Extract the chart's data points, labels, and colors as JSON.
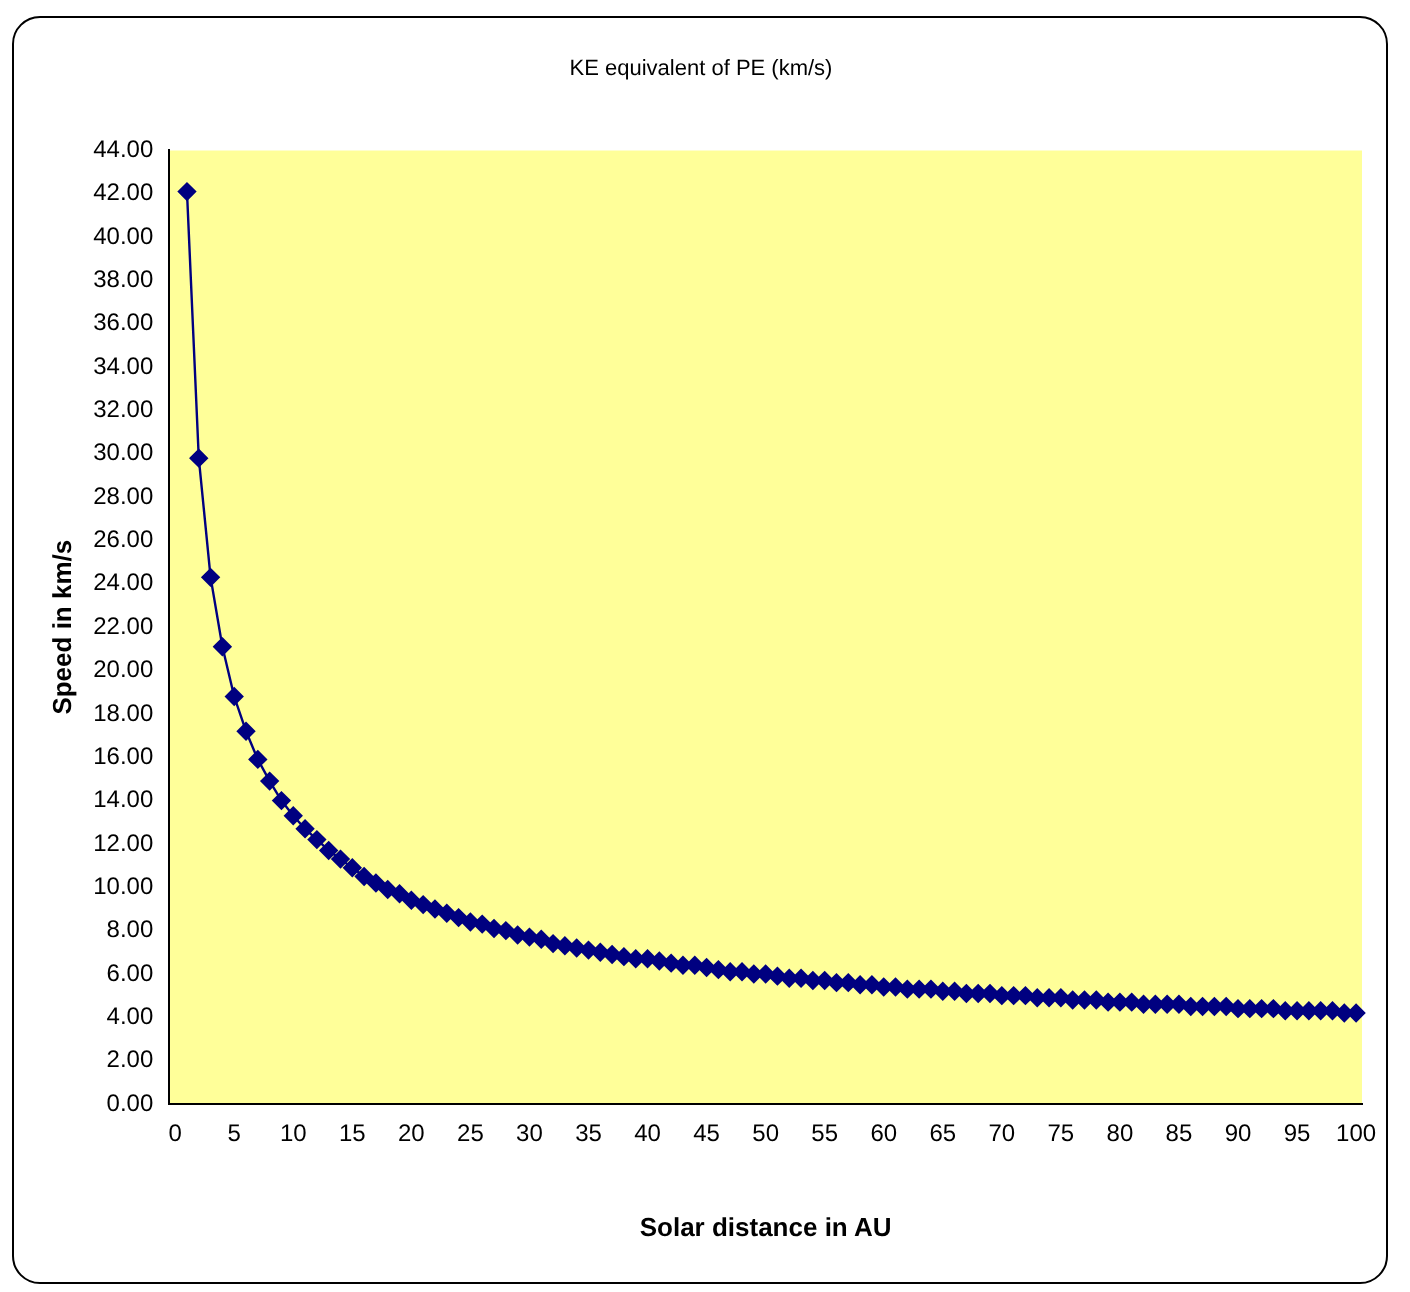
{
  "chart_data": {
    "type": "line",
    "title": "KE equivalent of PE (km/s)",
    "xlabel": "Solar distance in AU",
    "ylabel": "Speed in km/s",
    "categories": [
      "0",
      null,
      null,
      null,
      null,
      "5",
      null,
      null,
      null,
      null,
      "10",
      null,
      null,
      null,
      null,
      "15",
      null,
      null,
      null,
      null,
      "20",
      null,
      null,
      null,
      null,
      "25",
      null,
      null,
      null,
      null,
      "30",
      null,
      null,
      null,
      null,
      "35",
      null,
      null,
      null,
      null,
      "40",
      null,
      null,
      null,
      null,
      "45",
      null,
      null,
      null,
      null,
      "50",
      null,
      null,
      null,
      null,
      "55",
      null,
      null,
      null,
      null,
      "60",
      null,
      null,
      null,
      null,
      "65",
      null,
      null,
      null,
      null,
      "70",
      null,
      null,
      null,
      null,
      "75",
      null,
      null,
      null,
      null,
      "80",
      null,
      null,
      null,
      null,
      "85",
      null,
      null,
      null,
      null,
      "90",
      null,
      null,
      null,
      null,
      "95",
      null,
      null,
      null,
      null,
      "100"
    ],
    "series": [
      {
        "color": "#000080",
        "values": [
          null,
          42.1,
          29.8,
          24.3,
          21.1,
          18.8,
          17.2,
          15.9,
          14.9,
          14.0,
          13.3,
          12.7,
          12.2,
          11.7,
          11.3,
          10.9,
          10.5,
          10.2,
          9.9,
          9.7,
          9.4,
          9.2,
          9.0,
          8.8,
          8.6,
          8.4,
          8.3,
          8.1,
          8.0,
          7.8,
          7.7,
          7.6,
          7.4,
          7.3,
          7.2,
          7.1,
          7.0,
          6.9,
          6.8,
          6.7,
          6.7,
          6.6,
          6.5,
          6.4,
          6.4,
          6.3,
          6.2,
          6.1,
          6.1,
          6.0,
          6.0,
          5.9,
          5.8,
          5.8,
          5.7,
          5.7,
          5.6,
          5.6,
          5.5,
          5.5,
          5.4,
          5.4,
          5.3,
          5.3,
          5.3,
          5.2,
          5.2,
          5.1,
          5.1,
          5.1,
          5.0,
          5.0,
          5.0,
          4.9,
          4.9,
          4.9,
          4.8,
          4.8,
          4.8,
          4.7,
          4.7,
          4.7,
          4.6,
          4.6,
          4.6,
          4.6,
          4.5,
          4.5,
          4.5,
          4.5,
          4.4,
          4.4,
          4.4,
          4.4,
          4.3,
          4.3,
          4.3,
          4.3,
          4.3,
          4.2,
          4.2
        ]
      }
    ],
    "ylim": [
      0,
      44
    ],
    "yticks": [
      {
        "value": 0,
        "label": "0.00"
      },
      {
        "value": 2,
        "label": "2.00"
      },
      {
        "value": 4,
        "label": "4.00"
      },
      {
        "value": 6,
        "label": "6.00"
      },
      {
        "value": 8,
        "label": "8.00"
      },
      {
        "value": 10,
        "label": "10.00"
      },
      {
        "value": 12,
        "label": "12.00"
      },
      {
        "value": 14,
        "label": "14.00"
      },
      {
        "value": 16,
        "label": "16.00"
      },
      {
        "value": 18,
        "label": "18.00"
      },
      {
        "value": 20,
        "label": "20.00"
      },
      {
        "value": 22,
        "label": "22.00"
      },
      {
        "value": 24,
        "label": "24.00"
      },
      {
        "value": 26,
        "label": "26.00"
      },
      {
        "value": 28,
        "label": "28.00"
      },
      {
        "value": 30,
        "label": "30.00"
      },
      {
        "value": 32,
        "label": "32.00"
      },
      {
        "value": 34,
        "label": "34.00"
      },
      {
        "value": 36,
        "label": "36.00"
      },
      {
        "value": 38,
        "label": "38.00"
      },
      {
        "value": 40,
        "label": "40.00"
      },
      {
        "value": 42,
        "label": "42.00"
      },
      {
        "value": 44,
        "label": "44.00"
      }
    ],
    "grid": false,
    "legend": false,
    "marker": "diamond",
    "line_style": "solid"
  }
}
